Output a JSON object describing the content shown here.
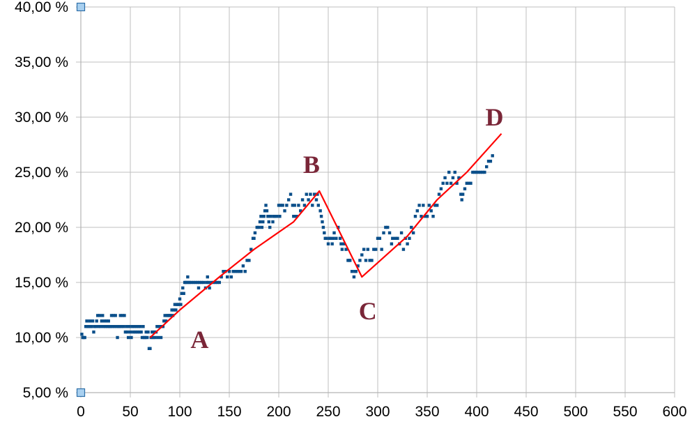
{
  "chart_data": {
    "type": "scatter",
    "title": "",
    "xlabel": "",
    "ylabel": "",
    "xlim": [
      0,
      600
    ],
    "ylim": [
      5,
      40
    ],
    "x_ticks": [
      0,
      50,
      100,
      150,
      200,
      250,
      300,
      350,
      400,
      450,
      500,
      550,
      600
    ],
    "y_ticks": [
      5,
      10,
      15,
      20,
      25,
      30,
      35,
      40
    ],
    "y_tick_labels": [
      "5,00 %",
      "10,00 %",
      "15,00 %",
      "20,00 %",
      "25,00 %",
      "30,00 %",
      "35,00 %",
      "40,00 %"
    ],
    "grid": true,
    "legend": "none",
    "colors": {
      "points": "#0b4f8a",
      "trend": "#ff0000",
      "annotation": "#7a2638",
      "grid": "#bfbfbf"
    },
    "series": [
      {
        "type": "scatter",
        "points": [
          [
            1,
            10.3
          ],
          [
            2,
            10.0
          ],
          [
            3,
            10.0
          ],
          [
            4,
            10.0
          ],
          [
            5,
            11.0
          ],
          [
            6,
            11.5
          ],
          [
            7,
            11.0
          ],
          [
            8,
            11.0
          ],
          [
            9,
            11.5
          ],
          [
            10,
            11.0
          ],
          [
            11,
            11.0
          ],
          [
            12,
            11.5
          ],
          [
            13,
            10.5
          ],
          [
            14,
            11.0
          ],
          [
            15,
            11.0
          ],
          [
            16,
            11.5
          ],
          [
            17,
            12.0
          ],
          [
            18,
            11.0
          ],
          [
            19,
            12.0
          ],
          [
            20,
            11.0
          ],
          [
            21,
            11.5
          ],
          [
            22,
            12.0
          ],
          [
            23,
            11.0
          ],
          [
            24,
            11.5
          ],
          [
            25,
            11.0
          ],
          [
            26,
            11.5
          ],
          [
            27,
            11.0
          ],
          [
            28,
            11.5
          ],
          [
            29,
            11.0
          ],
          [
            30,
            11.0
          ],
          [
            31,
            12.0
          ],
          [
            32,
            11.0
          ],
          [
            33,
            12.0
          ],
          [
            34,
            11.0
          ],
          [
            35,
            12.0
          ],
          [
            36,
            11.0
          ],
          [
            37,
            10.0
          ],
          [
            38,
            11.0
          ],
          [
            39,
            11.0
          ],
          [
            40,
            12.0
          ],
          [
            41,
            11.0
          ],
          [
            42,
            12.0
          ],
          [
            43,
            11.0
          ],
          [
            44,
            12.0
          ],
          [
            45,
            10.5
          ],
          [
            46,
            11.0
          ],
          [
            47,
            10.5
          ],
          [
            48,
            10.0
          ],
          [
            49,
            11.0
          ],
          [
            50,
            10.5
          ],
          [
            51,
            10.0
          ],
          [
            52,
            11.0
          ],
          [
            53,
            10.5
          ],
          [
            54,
            11.0
          ],
          [
            55,
            10.5
          ],
          [
            56,
            11.0
          ],
          [
            57,
            10.5
          ],
          [
            58,
            11.0
          ],
          [
            59,
            10.5
          ],
          [
            60,
            11.0
          ],
          [
            61,
            10.5
          ],
          [
            62,
            10.0
          ],
          [
            63,
            11.0
          ],
          [
            64,
            10.0
          ],
          [
            65,
            10.0
          ],
          [
            66,
            10.5
          ],
          [
            67,
            10.0
          ],
          [
            68,
            10.5
          ],
          [
            69,
            9.0
          ],
          [
            70,
            9.0
          ],
          [
            71,
            10.0
          ],
          [
            72,
            10.5
          ],
          [
            73,
            10.0
          ],
          [
            74,
            10.5
          ],
          [
            75,
            10.0
          ],
          [
            76,
            10.5
          ],
          [
            77,
            11.0
          ],
          [
            78,
            10.0
          ],
          [
            79,
            11.0
          ],
          [
            80,
            11.0
          ],
          [
            81,
            10.0
          ],
          [
            82,
            11.0
          ],
          [
            83,
            11.0
          ],
          [
            84,
            11.5
          ],
          [
            85,
            12.0
          ],
          [
            86,
            11.5
          ],
          [
            87,
            12.0
          ],
          [
            88,
            12.0
          ],
          [
            89,
            12.0
          ],
          [
            90,
            12.0
          ],
          [
            91,
            12.0
          ],
          [
            92,
            12.5
          ],
          [
            93,
            12.0
          ],
          [
            94,
            12.5
          ],
          [
            95,
            13.0
          ],
          [
            96,
            12.5
          ],
          [
            97,
            13.0
          ],
          [
            98,
            13.0
          ],
          [
            99,
            13.0
          ],
          [
            100,
            13.5
          ],
          [
            101,
            13.0
          ],
          [
            102,
            14.0
          ],
          [
            103,
            14.5
          ],
          [
            104,
            14.0
          ],
          [
            105,
            15.0
          ],
          [
            106,
            15.0
          ],
          [
            107,
            15.0
          ],
          [
            108,
            15.5
          ],
          [
            109,
            15.0
          ],
          [
            110,
            15.0
          ],
          [
            112,
            15.0
          ],
          [
            114,
            15.0
          ],
          [
            116,
            15.0
          ],
          [
            118,
            15.0
          ],
          [
            119,
            14.5
          ],
          [
            120,
            15.0
          ],
          [
            122,
            15.0
          ],
          [
            124,
            15.0
          ],
          [
            126,
            14.5
          ],
          [
            127,
            15.0
          ],
          [
            128,
            15.5
          ],
          [
            129,
            15.0
          ],
          [
            130,
            14.5
          ],
          [
            132,
            15.0
          ],
          [
            134,
            15.0
          ],
          [
            136,
            15.0
          ],
          [
            138,
            15.0
          ],
          [
            140,
            15.0
          ],
          [
            142,
            15.5
          ],
          [
            144,
            16.0
          ],
          [
            146,
            16.0
          ],
          [
            148,
            15.5
          ],
          [
            150,
            16.0
          ],
          [
            152,
            15.5
          ],
          [
            154,
            16.0
          ],
          [
            156,
            16.0
          ],
          [
            158,
            16.0
          ],
          [
            160,
            16.0
          ],
          [
            162,
            16.0
          ],
          [
            164,
            16.5
          ],
          [
            166,
            16.0
          ],
          [
            168,
            17.0
          ],
          [
            170,
            17.0
          ],
          [
            172,
            18.0
          ],
          [
            174,
            19.0
          ],
          [
            175,
            19.0
          ],
          [
            176,
            19.5
          ],
          [
            178,
            20.0
          ],
          [
            180,
            20.0
          ],
          [
            181,
            20.5
          ],
          [
            182,
            21.0
          ],
          [
            183,
            20.0
          ],
          [
            184,
            20.5
          ],
          [
            185,
            21.0
          ],
          [
            186,
            21.5
          ],
          [
            187,
            22.0
          ],
          [
            188,
            21.5
          ],
          [
            189,
            21.0
          ],
          [
            190,
            20.5
          ],
          [
            191,
            20.0
          ],
          [
            192,
            21.0
          ],
          [
            194,
            20.5
          ],
          [
            195,
            21.0
          ],
          [
            196,
            21.0
          ],
          [
            198,
            21.0
          ],
          [
            200,
            22.0
          ],
          [
            201,
            21.0
          ],
          [
            202,
            22.0
          ],
          [
            204,
            22.0
          ],
          [
            206,
            21.5
          ],
          [
            208,
            22.0
          ],
          [
            210,
            22.5
          ],
          [
            212,
            23.0
          ],
          [
            214,
            22.0
          ],
          [
            215,
            21.0
          ],
          [
            216,
            22.0
          ],
          [
            218,
            21.0
          ],
          [
            220,
            22.0
          ],
          [
            222,
            21.5
          ],
          [
            224,
            22.5
          ],
          [
            226,
            22.0
          ],
          [
            228,
            23.0
          ],
          [
            230,
            22.5
          ],
          [
            232,
            23.0
          ],
          [
            234,
            22.0
          ],
          [
            236,
            23.0
          ],
          [
            238,
            22.5
          ],
          [
            239,
            23.0
          ],
          [
            240,
            22.0
          ],
          [
            242,
            21.5
          ],
          [
            243,
            21.0
          ],
          [
            244,
            20.5
          ],
          [
            245,
            20.0
          ],
          [
            246,
            19.5
          ],
          [
            247,
            19.0
          ],
          [
            248,
            19.0
          ],
          [
            250,
            18.5
          ],
          [
            251,
            19.0
          ],
          [
            252,
            19.0
          ],
          [
            254,
            18.5
          ],
          [
            255,
            19.0
          ],
          [
            256,
            19.5
          ],
          [
            258,
            19.0
          ],
          [
            260,
            20.0
          ],
          [
            262,
            19.0
          ],
          [
            263,
            18.5
          ],
          [
            264,
            18.0
          ],
          [
            266,
            18.5
          ],
          [
            268,
            18.0
          ],
          [
            270,
            17.0
          ],
          [
            271,
            17.0
          ],
          [
            272,
            17.0
          ],
          [
            274,
            16.0
          ],
          [
            276,
            15.5
          ],
          [
            277,
            16.0
          ],
          [
            278,
            16.0
          ],
          [
            280,
            16.5
          ],
          [
            282,
            17.0
          ],
          [
            284,
            17.5
          ],
          [
            286,
            18.0
          ],
          [
            288,
            17.0
          ],
          [
            290,
            18.0
          ],
          [
            292,
            17.0
          ],
          [
            294,
            17.0
          ],
          [
            296,
            18.0
          ],
          [
            298,
            18.0
          ],
          [
            300,
            19.0
          ],
          [
            302,
            19.0
          ],
          [
            304,
            18.0
          ],
          [
            306,
            19.5
          ],
          [
            308,
            20.0
          ],
          [
            310,
            20.0
          ],
          [
            312,
            19.5
          ],
          [
            314,
            18.5
          ],
          [
            315,
            19.0
          ],
          [
            318,
            19.0
          ],
          [
            320,
            19.0
          ],
          [
            322,
            18.5
          ],
          [
            324,
            19.5
          ],
          [
            326,
            18.0
          ],
          [
            328,
            19.0
          ],
          [
            330,
            18.5
          ],
          [
            332,
            19.0
          ],
          [
            334,
            20.0
          ],
          [
            336,
            19.5
          ],
          [
            338,
            21.0
          ],
          [
            340,
            21.5
          ],
          [
            342,
            22.0
          ],
          [
            344,
            21.0
          ],
          [
            346,
            22.0
          ],
          [
            348,
            21.0
          ],
          [
            350,
            21.0
          ],
          [
            352,
            22.0
          ],
          [
            354,
            21.5
          ],
          [
            356,
            21.0
          ],
          [
            358,
            22.0
          ],
          [
            360,
            22.0
          ],
          [
            362,
            23.0
          ],
          [
            364,
            23.5
          ],
          [
            366,
            24.0
          ],
          [
            368,
            24.5
          ],
          [
            370,
            24.0
          ],
          [
            372,
            25.0
          ],
          [
            374,
            24.0
          ],
          [
            376,
            24.5
          ],
          [
            378,
            25.0
          ],
          [
            380,
            24.0
          ],
          [
            382,
            24.5
          ],
          [
            384,
            23.0
          ],
          [
            385,
            22.5
          ],
          [
            386,
            23.0
          ],
          [
            388,
            23.5
          ],
          [
            390,
            24.0
          ],
          [
            392,
            24.0
          ],
          [
            394,
            24.0
          ],
          [
            396,
            25.0
          ],
          [
            398,
            25.0
          ],
          [
            400,
            25.0
          ],
          [
            402,
            25.0
          ],
          [
            404,
            25.0
          ],
          [
            406,
            25.0
          ],
          [
            408,
            25.0
          ],
          [
            410,
            25.5
          ],
          [
            412,
            26.0
          ],
          [
            414,
            26.0
          ],
          [
            416,
            26.5
          ]
        ]
      },
      {
        "type": "line",
        "points": [
          [
            70,
            10.0
          ],
          [
            100,
            12.5
          ],
          [
            140,
            15.5
          ],
          [
            175,
            18.0
          ],
          [
            215,
            20.5
          ],
          [
            241,
            23.3
          ],
          [
            284,
            15.5
          ],
          [
            330,
            19.2
          ],
          [
            360,
            22.5
          ],
          [
            390,
            25.0
          ],
          [
            425,
            28.5
          ]
        ]
      }
    ],
    "annotations": [
      {
        "text": "A",
        "x": 120,
        "y": 9.8
      },
      {
        "text": "B",
        "x": 233,
        "y": 25.7
      },
      {
        "text": "C",
        "x": 290,
        "y": 12.4
      },
      {
        "text": "D",
        "x": 418,
        "y": 30.0
      }
    ],
    "markers": [
      {
        "x": 0,
        "y": 40
      },
      {
        "x": 0,
        "y": 5
      }
    ]
  }
}
